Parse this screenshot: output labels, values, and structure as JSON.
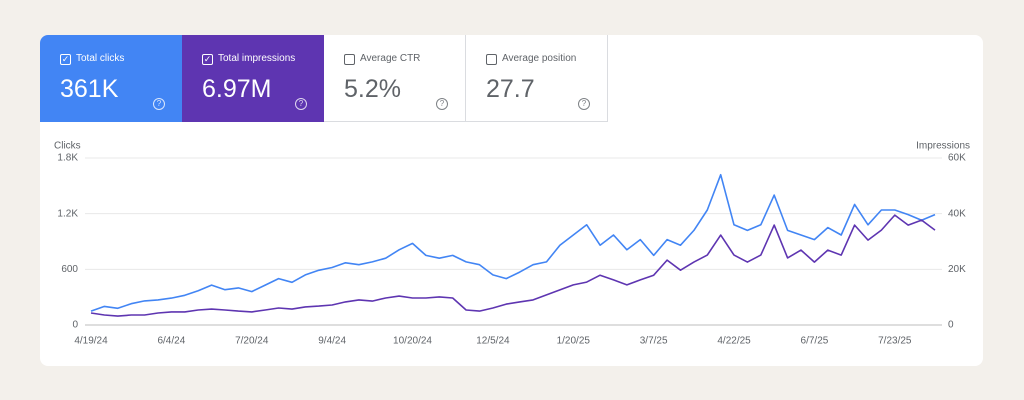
{
  "cards": [
    {
      "label": "Total clicks",
      "value": "361K",
      "checked": true,
      "color": "#4285f4"
    },
    {
      "label": "Total impressions",
      "value": "6.97M",
      "checked": true,
      "color": "#5e35b1"
    },
    {
      "label": "Average CTR",
      "value": "5.2%",
      "checked": false,
      "color": "#ffffff"
    },
    {
      "label": "Average position",
      "value": "27.7",
      "checked": false,
      "color": "#ffffff"
    }
  ],
  "chart_data": {
    "type": "line",
    "y_label": "Clicks",
    "y2_label": "Impressions",
    "categories": [
      "4/19/24",
      null,
      null,
      null,
      null,
      null,
      "6/4/24",
      null,
      null,
      null,
      null,
      null,
      "7/20/24",
      null,
      null,
      null,
      null,
      null,
      "9/4/24",
      null,
      null,
      null,
      null,
      null,
      "10/20/24",
      null,
      null,
      null,
      null,
      null,
      "12/5/24",
      null,
      null,
      null,
      null,
      null,
      "1/20/25",
      null,
      null,
      null,
      null,
      null,
      "3/7/25",
      null,
      null,
      null,
      null,
      null,
      "4/22/25",
      null,
      null,
      null,
      null,
      null,
      "6/7/25",
      null,
      null,
      null,
      null,
      null,
      "7/23/25",
      null,
      null,
      null
    ],
    "series": [
      {
        "name": "Clicks",
        "color": "#4285f4",
        "values": [
          150,
          200,
          180,
          230,
          260,
          270,
          290,
          320,
          370,
          430,
          380,
          400,
          360,
          430,
          500,
          460,
          540,
          590,
          620,
          670,
          650,
          680,
          720,
          810,
          880,
          750,
          720,
          750,
          680,
          650,
          540,
          500,
          570,
          650,
          680,
          860,
          970,
          1080,
          860,
          970,
          810,
          920,
          750,
          920,
          860,
          1020,
          1240,
          1620,
          1080,
          1020,
          1080,
          1400,
          1020,
          970,
          920,
          1050,
          970,
          1300,
          1080,
          1240,
          1240,
          1190,
          1130,
          1190
        ]
      },
      {
        "name": "Impressions",
        "color": "#5e35b1",
        "axis": "y2",
        "values": [
          4300,
          3600,
          3200,
          3600,
          3600,
          4300,
          4700,
          4700,
          5400,
          5700,
          5400,
          5000,
          4700,
          5400,
          6100,
          5700,
          6500,
          6800,
          7200,
          8300,
          9000,
          8600,
          9700,
          10400,
          9700,
          9700,
          10100,
          9700,
          5400,
          5000,
          6100,
          7500,
          8300,
          9000,
          10800,
          12600,
          14400,
          15400,
          17900,
          16200,
          14400,
          16200,
          17900,
          23300,
          19700,
          22600,
          25100,
          32300,
          25100,
          22600,
          25100,
          35900,
          24100,
          26900,
          22600,
          26900,
          25100,
          35900,
          30500,
          34100,
          39500,
          35900,
          37700,
          34100
        ]
      }
    ],
    "ylim": [
      0,
      1800
    ],
    "yticks": [
      0,
      600,
      {
        "value": 1200,
        "label": "1.2K"
      },
      {
        "value": 1800,
        "label": "1.8K"
      }
    ],
    "y2lim": [
      0,
      60000
    ],
    "y2ticks": [
      0,
      {
        "value": 20000,
        "label": "20K"
      },
      {
        "value": 40000,
        "label": "40K"
      },
      {
        "value": 60000,
        "label": "60K"
      }
    ],
    "grid": true
  }
}
